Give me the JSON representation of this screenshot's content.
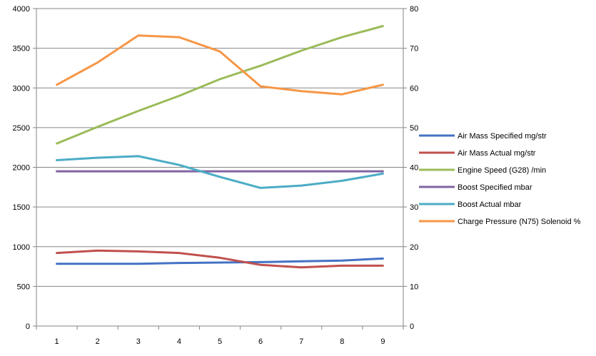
{
  "chart_data": {
    "type": "line",
    "categories": [
      "1",
      "2",
      "3",
      "4",
      "5",
      "6",
      "7",
      "8",
      "9"
    ],
    "y_left": {
      "ylim": [
        0,
        4000
      ],
      "ticks": [
        "0",
        "500",
        "1000",
        "1500",
        "2000",
        "2500",
        "3000",
        "3500",
        "4000"
      ]
    },
    "y_right": {
      "ylim": [
        0,
        80
      ],
      "ticks": [
        "0",
        "10",
        "20",
        "30",
        "40",
        "50",
        "60",
        "70",
        "80"
      ]
    },
    "grid": "horizontal",
    "legend_position": "right",
    "series": [
      {
        "name": "Air Mass Specified  mg/str",
        "axis": "left",
        "color": "#4472C4",
        "values": [
          785,
          785,
          785,
          795,
          800,
          805,
          815,
          825,
          850
        ]
      },
      {
        "name": "Air Mass Actual  mg/str",
        "axis": "left",
        "color": "#C0504D",
        "values": [
          920,
          950,
          940,
          920,
          860,
          770,
          740,
          760,
          760
        ]
      },
      {
        "name": "Engine Speed (G28)  /min",
        "axis": "left",
        "color": "#9BBB59",
        "values": [
          2300,
          2510,
          2710,
          2900,
          3110,
          3280,
          3470,
          3640,
          3780
        ]
      },
      {
        "name": "Boost Specified  mbar",
        "axis": "left",
        "color": "#8064A2",
        "values": [
          1950,
          1950,
          1950,
          1950,
          1950,
          1950,
          1950,
          1950,
          1950
        ]
      },
      {
        "name": "Boost Actual  mbar",
        "axis": "left",
        "color": "#4BACC6",
        "values": [
          2090,
          2120,
          2140,
          2030,
          1880,
          1740,
          1770,
          1830,
          1920
        ]
      },
      {
        "name": "Charge Pressure (N75) Solenoid  %",
        "axis": "right",
        "color": "#F79646",
        "values": [
          60.8,
          66.4,
          73.2,
          72.8,
          69.2,
          60.4,
          59.2,
          58.4,
          60.8
        ]
      }
    ]
  }
}
